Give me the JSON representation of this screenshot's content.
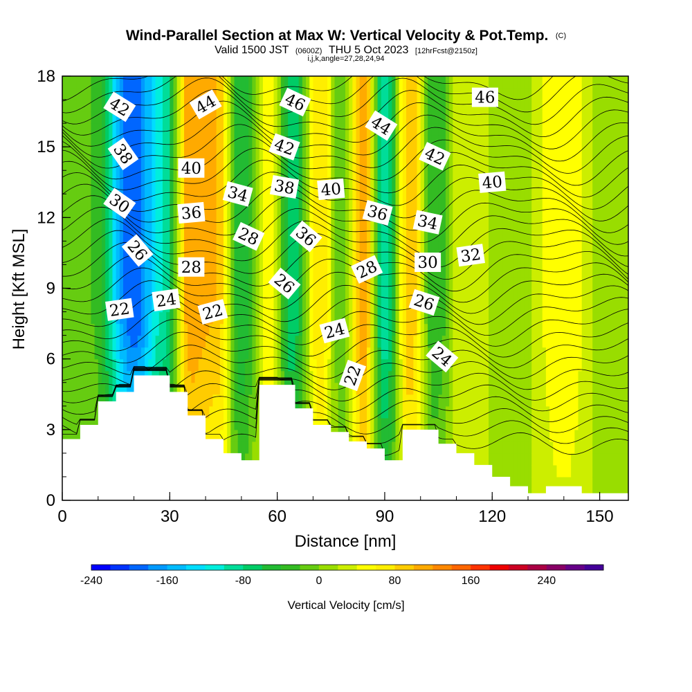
{
  "header": {
    "title": "Wind-Parallel Section at Max W: Vertical Velocity & Pot.Temp.",
    "copyright": "(C)",
    "valid_prefix": "Valid 1500 JST",
    "valid_utc": "(0600Z)",
    "valid_date": "THU 5 Oct 2023",
    "forecast": "[12hrFcst@2150z]",
    "indices": "i,j,k,angle=27,28,24,94"
  },
  "chart_data": {
    "type": "contour",
    "xlabel": "Distance [nm]",
    "ylabel": "Height [Kft MSL]",
    "xlim": [
      0,
      158
    ],
    "ylim": [
      0,
      18
    ],
    "x_ticks": [
      0,
      30,
      60,
      90,
      120,
      150
    ],
    "y_ticks": [
      0,
      3,
      6,
      9,
      12,
      15,
      18
    ],
    "colorbar": {
      "label": "Vertical Velocity [cm/s]",
      "min": -240,
      "max": 300,
      "step": 20,
      "tick_values": [
        -240,
        -160,
        -80,
        0,
        80,
        160,
        240
      ],
      "tick_labels": [
        "-240",
        "-160",
        "-80",
        "0",
        "80",
        "160",
        "240"
      ],
      "colors": [
        "#0000ff",
        "#0033ff",
        "#0066ff",
        "#0099ff",
        "#00bbff",
        "#00ddff",
        "#00eedd",
        "#00dd99",
        "#00cc66",
        "#22bb33",
        "#33bb22",
        "#66cc11",
        "#99dd00",
        "#ccee00",
        "#ffff00",
        "#ffee00",
        "#ffcc00",
        "#ffaa00",
        "#ff8800",
        "#ff6600",
        "#ff3300",
        "#ee0000",
        "#cc0022",
        "#aa0044",
        "#880066",
        "#660088",
        "#440099"
      ]
    },
    "terrain_kft": [
      [
        0,
        2.6
      ],
      [
        5,
        3.2
      ],
      [
        10,
        4.2
      ],
      [
        15,
        4.6
      ],
      [
        20,
        5.3
      ],
      [
        25,
        5.3
      ],
      [
        30,
        4.6
      ],
      [
        35,
        3.6
      ],
      [
        40,
        2.6
      ],
      [
        45,
        2.0
      ],
      [
        50,
        1.7
      ],
      [
        55,
        4.9
      ],
      [
        60,
        4.9
      ],
      [
        65,
        3.9
      ],
      [
        70,
        3.2
      ],
      [
        75,
        2.9
      ],
      [
        80,
        2.5
      ],
      [
        85,
        2.2
      ],
      [
        90,
        1.7
      ],
      [
        95,
        3.0
      ],
      [
        100,
        3.0
      ],
      [
        105,
        2.4
      ],
      [
        110,
        2.0
      ],
      [
        115,
        1.5
      ],
      [
        120,
        1.0
      ],
      [
        125,
        0.6
      ],
      [
        130,
        0.3
      ],
      [
        135,
        0.6
      ],
      [
        140,
        0.6
      ],
      [
        145,
        0.3
      ],
      [
        158,
        0.3
      ]
    ],
    "w_bands": [
      {
        "x": 8,
        "w": -40
      },
      {
        "x": 20,
        "w": -220
      },
      {
        "x": 28,
        "w": -120
      },
      {
        "x": 36,
        "w": 100
      },
      {
        "x": 43,
        "w": 80
      },
      {
        "x": 50,
        "w": -80
      },
      {
        "x": 58,
        "w": 40
      },
      {
        "x": 64,
        "w": -100
      },
      {
        "x": 72,
        "w": 60
      },
      {
        "x": 78,
        "w": -40
      },
      {
        "x": 84,
        "w": 100
      },
      {
        "x": 90,
        "w": -120
      },
      {
        "x": 97,
        "w": 80
      },
      {
        "x": 104,
        "w": -60
      },
      {
        "x": 112,
        "w": 20
      },
      {
        "x": 125,
        "w": -20
      },
      {
        "x": 140,
        "w": 40
      },
      {
        "x": 152,
        "w": -10
      }
    ],
    "theta_labels": [
      {
        "text": "42",
        "x": 16,
        "y": 16.7,
        "angle": 32
      },
      {
        "text": "44",
        "x": 40,
        "y": 16.8,
        "angle": -30
      },
      {
        "text": "46",
        "x": 65,
        "y": 16.9,
        "angle": 25
      },
      {
        "text": "46",
        "x": 118,
        "y": 17.1,
        "angle": 0
      },
      {
        "text": "44",
        "x": 89,
        "y": 15.9,
        "angle": 32
      },
      {
        "text": "42",
        "x": 62,
        "y": 15.0,
        "angle": 20
      },
      {
        "text": "42",
        "x": 104,
        "y": 14.6,
        "angle": 25
      },
      {
        "text": "38",
        "x": 17,
        "y": 14.7,
        "angle": 55
      },
      {
        "text": "40",
        "x": 36,
        "y": 14.1,
        "angle": 0
      },
      {
        "text": "40",
        "x": 120,
        "y": 13.5,
        "angle": -5
      },
      {
        "text": "38",
        "x": 62,
        "y": 13.3,
        "angle": 10
      },
      {
        "text": "40",
        "x": 75,
        "y": 13.2,
        "angle": -5
      },
      {
        "text": "34",
        "x": 49,
        "y": 13.0,
        "angle": 15
      },
      {
        "text": "30",
        "x": 16,
        "y": 12.6,
        "angle": 35
      },
      {
        "text": "36",
        "x": 36,
        "y": 12.2,
        "angle": -5
      },
      {
        "text": "36",
        "x": 88,
        "y": 12.2,
        "angle": 15
      },
      {
        "text": "34",
        "x": 102,
        "y": 11.8,
        "angle": 12
      },
      {
        "text": "28",
        "x": 52,
        "y": 11.2,
        "angle": 25
      },
      {
        "text": "36",
        "x": 68,
        "y": 11.2,
        "angle": 40
      },
      {
        "text": "26",
        "x": 21,
        "y": 10.6,
        "angle": 50
      },
      {
        "text": "32",
        "x": 114,
        "y": 10.4,
        "angle": -8
      },
      {
        "text": "30",
        "x": 102,
        "y": 10.1,
        "angle": 0
      },
      {
        "text": "28",
        "x": 36,
        "y": 9.9,
        "angle": 0
      },
      {
        "text": "28",
        "x": 85,
        "y": 9.8,
        "angle": -25
      },
      {
        "text": "26",
        "x": 62,
        "y": 9.2,
        "angle": 40
      },
      {
        "text": "24",
        "x": 29,
        "y": 8.5,
        "angle": -8
      },
      {
        "text": "26",
        "x": 101,
        "y": 8.4,
        "angle": 18
      },
      {
        "text": "22",
        "x": 16,
        "y": 8.1,
        "angle": -8
      },
      {
        "text": "22",
        "x": 42,
        "y": 8.0,
        "angle": -15
      },
      {
        "text": "24",
        "x": 76,
        "y": 7.2,
        "angle": -15
      },
      {
        "text": "24",
        "x": 106,
        "y": 6.1,
        "angle": 40
      },
      {
        "text": "22",
        "x": 81,
        "y": 5.3,
        "angle": -70
      }
    ]
  }
}
